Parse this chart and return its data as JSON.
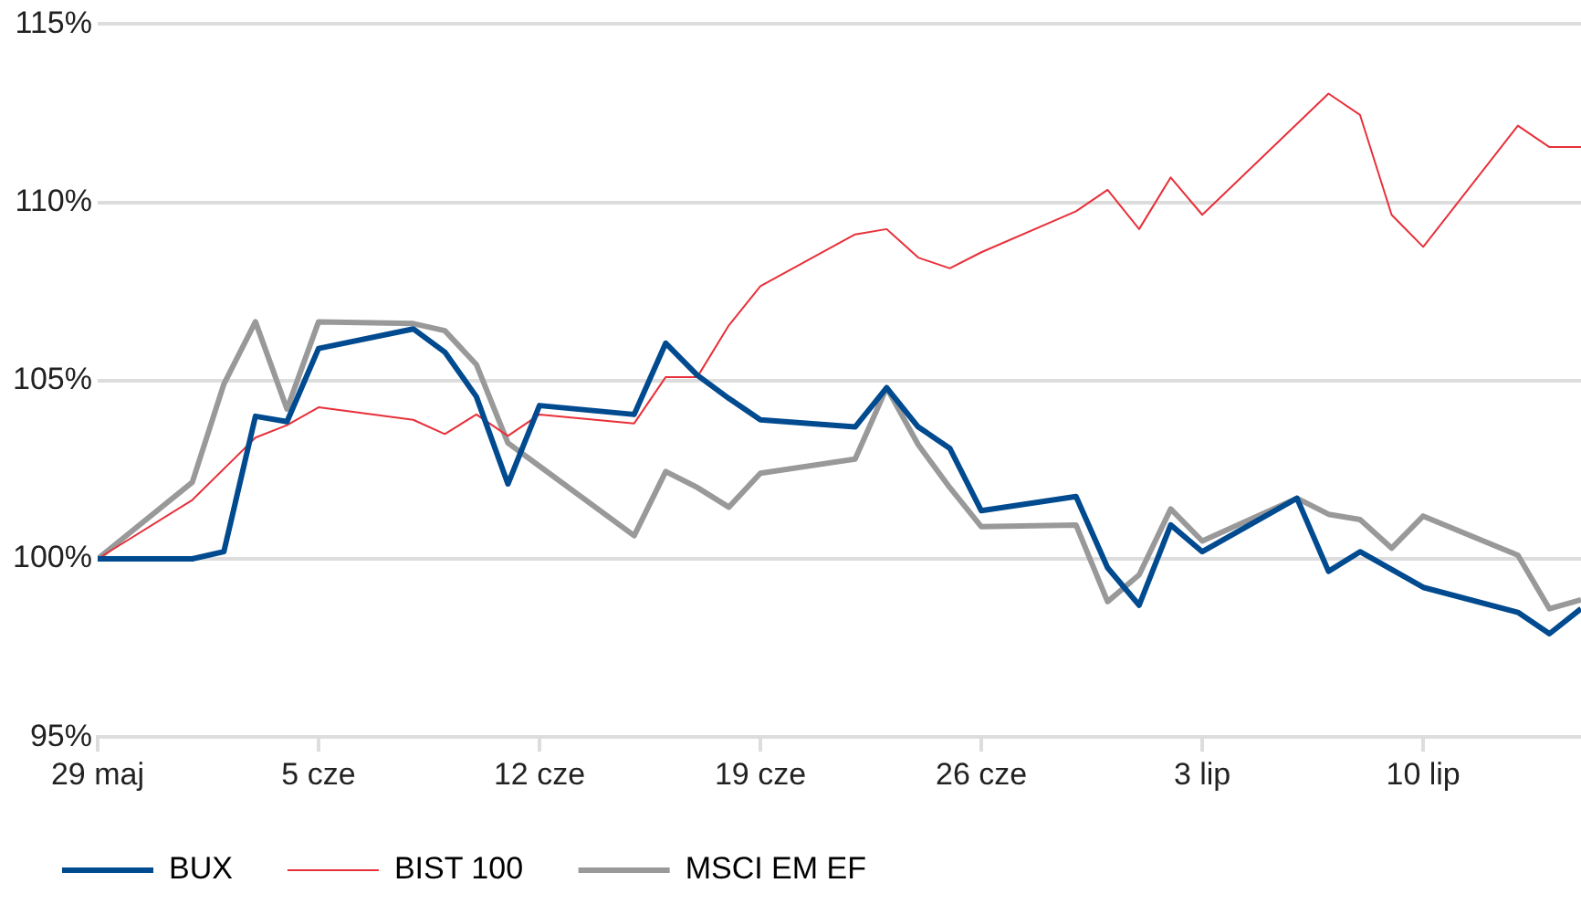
{
  "chart_data": {
    "type": "line",
    "x": [
      "--05-29",
      "--06-01",
      "--06-02",
      "--06-03",
      "--06-04",
      "--06-05",
      "--06-08",
      "--06-09",
      "--06-10",
      "--06-11",
      "--06-12",
      "--06-15",
      "--06-16",
      "--06-17",
      "--06-18",
      "--06-19",
      "--06-22",
      "--06-23",
      "--06-24",
      "--06-25",
      "--06-26",
      "--06-29",
      "--06-30",
      "--07-01",
      "--07-02",
      "--07-03",
      "--07-06",
      "--07-07",
      "--07-08",
      "--07-09",
      "--07-10",
      "--07-13",
      "--07-14",
      "--07-15"
    ],
    "series": [
      {
        "name": "BUX",
        "color": "#004a8f",
        "values": [
          100,
          100,
          100.2,
          104.0,
          103.85,
          105.9,
          106.45,
          105.8,
          104.55,
          102.1,
          104.3,
          104.05,
          106.05,
          105.15,
          104.5,
          103.9,
          103.7,
          104.8,
          103.7,
          103.1,
          101.35,
          101.75,
          99.75,
          98.7,
          100.95,
          100.2,
          101.7,
          99.65,
          100.2,
          99.7,
          99.2,
          98.5,
          97.9,
          98.6
        ]
      },
      {
        "name": "BIST 100",
        "color": "#e8303a",
        "x": [
          "--05-29",
          "--06-01",
          "--06-03",
          "--06-04",
          "--06-05",
          "--06-08",
          "--06-09",
          "--06-10",
          "--06-11",
          "--06-12",
          "--06-15",
          "--06-16",
          "--06-17",
          "--06-18",
          "--06-19",
          "--06-22",
          "--06-23",
          "--06-24",
          "--06-25",
          "--06-26",
          "--06-29",
          "--06-30",
          "--07-01",
          "--07-02",
          "--07-03",
          "--07-07",
          "--07-08",
          "--07-09",
          "--07-10",
          "--07-13",
          "--07-14",
          "--07-15"
        ],
        "values": [
          100,
          101.65,
          103.4,
          103.75,
          104.25,
          103.9,
          103.5,
          104.05,
          103.45,
          104.05,
          103.8,
          105.1,
          105.1,
          106.55,
          107.65,
          109.1,
          109.25,
          108.45,
          108.15,
          108.6,
          109.75,
          110.35,
          109.25,
          110.7,
          109.65,
          113.05,
          112.45,
          109.65,
          108.75,
          112.15,
          111.55,
          111.55
        ]
      },
      {
        "name": "MSCI EM EF",
        "color": "#999999",
        "values": [
          100,
          102.15,
          104.9,
          106.65,
          104.2,
          106.65,
          106.6,
          106.4,
          105.45,
          103.25,
          102.6,
          100.65,
          102.45,
          102.0,
          101.45,
          102.4,
          102.8,
          104.8,
          103.2,
          102.0,
          100.9,
          100.95,
          98.8,
          99.55,
          101.4,
          100.5,
          101.7,
          101.25,
          101.1,
          100.3,
          101.2,
          100.1,
          98.6,
          98.85
        ]
      }
    ],
    "xlim": [
      "--05-29",
      "--07-15"
    ],
    "xticks": [
      {
        "value": "--05-29",
        "label": "29 maj"
      },
      {
        "value": "--06-05",
        "label": "5 cze"
      },
      {
        "value": "--06-12",
        "label": "12 cze"
      },
      {
        "value": "--06-19",
        "label": "19 cze"
      },
      {
        "value": "--06-26",
        "label": "26 cze"
      },
      {
        "value": "--07-03",
        "label": "3 lip"
      },
      {
        "value": "--07-10",
        "label": "10 lip"
      }
    ],
    "ylim": [
      95,
      115
    ],
    "yticks": [
      {
        "value": 95,
        "label": "95%"
      },
      {
        "value": 100,
        "label": "100%"
      },
      {
        "value": 105,
        "label": "105%"
      },
      {
        "value": 110,
        "label": "110%"
      },
      {
        "value": 115,
        "label": "115%"
      }
    ],
    "grid": "y",
    "legend": "bottom",
    "marker": "none",
    "line_style": "solid"
  }
}
